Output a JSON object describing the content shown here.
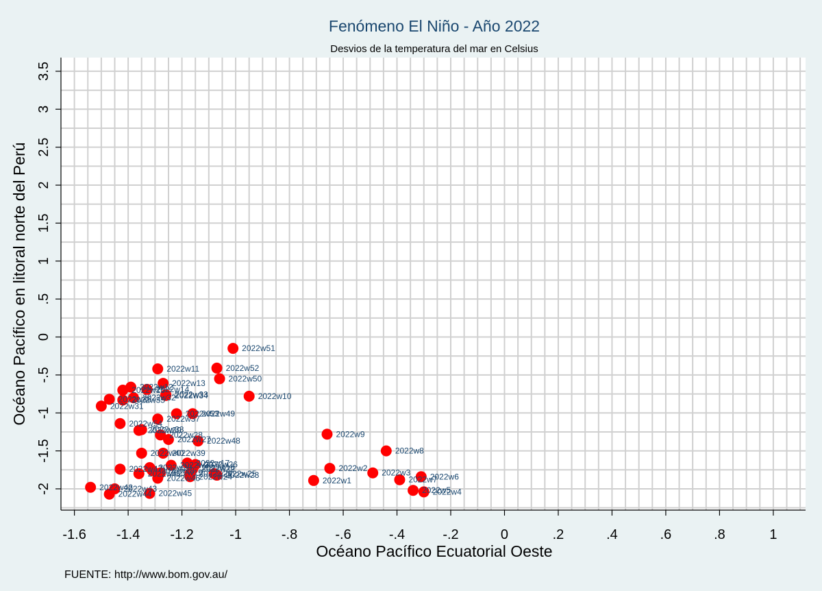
{
  "chart_data": {
    "type": "scatter",
    "title": "Fenómeno El Niño - Año 2022",
    "subtitle": "Desvios de la temperatura del mar en Celsius",
    "xlabel": "Océano Pacífico Ecuatorial Oeste",
    "ylabel": "Océano Pacífico en litoral norte del Perú",
    "source": "FUENTE: http://www.bom.gov.au/",
    "xlim": [
      -1.65,
      1.12
    ],
    "ylim": [
      -2.28,
      3.68
    ],
    "xticks": [
      -1.6,
      -1.4,
      -1.2,
      -1,
      -0.8,
      -0.6,
      -0.4,
      -0.2,
      0,
      0.2,
      0.4,
      0.6,
      0.8,
      1
    ],
    "xtick_labels": [
      "-1.6",
      "-1.4",
      "-1.2",
      "-1",
      "-.8",
      "-.6",
      "-.4",
      "-.2",
      "0",
      ".2",
      ".4",
      ".6",
      ".8",
      "1"
    ],
    "yticks": [
      -2,
      -1.5,
      -1,
      -0.5,
      0,
      0.5,
      1,
      1.5,
      2,
      2.5,
      3,
      3.5
    ],
    "ytick_labels": [
      "-2",
      "-1.5",
      "-1",
      "-.5",
      "0",
      ".5",
      "1",
      "1.5",
      "2",
      "2.5",
      "3",
      "3.5"
    ],
    "grid": true,
    "marker_color": "#ff0000",
    "label_color": "#1a476f",
    "points": [
      {
        "label": "2022w1",
        "x": -0.71,
        "y": -1.89
      },
      {
        "label": "2022w2",
        "x": -0.65,
        "y": -1.73
      },
      {
        "label": "2022w3",
        "x": -0.49,
        "y": -1.79
      },
      {
        "label": "2022w4",
        "x": -0.3,
        "y": -2.04
      },
      {
        "label": "2022w5",
        "x": -0.34,
        "y": -2.02
      },
      {
        "label": "2022w6",
        "x": -0.31,
        "y": -1.84
      },
      {
        "label": "2022w7",
        "x": -0.39,
        "y": -1.88
      },
      {
        "label": "2022w8",
        "x": -0.44,
        "y": -1.5
      },
      {
        "label": "2022w9",
        "x": -0.66,
        "y": -1.28
      },
      {
        "label": "2022w10",
        "x": -0.95,
        "y": -0.78
      },
      {
        "label": "2022w11",
        "x": -1.29,
        "y": -0.42
      },
      {
        "label": "2022w12",
        "x": -1.39,
        "y": -0.66
      },
      {
        "label": "2022w13",
        "x": -1.27,
        "y": -0.61
      },
      {
        "label": "2022w14",
        "x": -1.33,
        "y": -0.69
      },
      {
        "label": "2022w15",
        "x": -1.42,
        "y": -0.7
      },
      {
        "label": "2022w16",
        "x": -1.16,
        "y": -1.72
      },
      {
        "label": "2022w17",
        "x": -1.18,
        "y": -1.66
      },
      {
        "label": "2022w18",
        "x": -1.31,
        "y": -1.76
      },
      {
        "label": "2022w19",
        "x": -1.28,
        "y": -1.79
      },
      {
        "label": "2022w20",
        "x": -1.24,
        "y": -1.69
      },
      {
        "label": "2022w21",
        "x": -1.17,
        "y": -1.8
      },
      {
        "label": "2022w22",
        "x": -1.16,
        "y": -1.74
      },
      {
        "label": "2022w23",
        "x": -1.07,
        "y": -1.82
      },
      {
        "label": "2022w24",
        "x": -1.17,
        "y": -1.84
      },
      {
        "label": "2022w25",
        "x": -1.08,
        "y": -1.8
      },
      {
        "label": "2022w26",
        "x": -1.15,
        "y": -1.68
      },
      {
        "label": "2022w27",
        "x": -1.25,
        "y": -1.35
      },
      {
        "label": "2022w28",
        "x": -1.28,
        "y": -1.29
      },
      {
        "label": "2022w29",
        "x": -1.32,
        "y": -1.72
      },
      {
        "label": "2022w30",
        "x": -1.36,
        "y": -1.23
      },
      {
        "label": "2022w31",
        "x": -1.5,
        "y": -0.91
      },
      {
        "label": "2022w32",
        "x": -1.38,
        "y": -0.8
      },
      {
        "label": "2022w33",
        "x": -1.26,
        "y": -0.76
      },
      {
        "label": "2022w34",
        "x": -1.26,
        "y": -0.77
      },
      {
        "label": "2022w35",
        "x": -1.42,
        "y": -0.83
      },
      {
        "label": "2022w36",
        "x": -1.47,
        "y": -0.82
      },
      {
        "label": "2022w37",
        "x": -1.29,
        "y": -1.08
      },
      {
        "label": "2022w38",
        "x": -1.35,
        "y": -1.22
      },
      {
        "label": "2022w39",
        "x": -1.27,
        "y": -1.53
      },
      {
        "label": "2022w40",
        "x": -1.35,
        "y": -1.53
      },
      {
        "label": "2022w41",
        "x": -1.36,
        "y": -1.8
      },
      {
        "label": "2022w42",
        "x": -1.54,
        "y": -1.98
      },
      {
        "label": "2022w43",
        "x": -1.45,
        "y": -2.0
      },
      {
        "label": "2022w44",
        "x": -1.47,
        "y": -2.07
      },
      {
        "label": "2022w45",
        "x": -1.32,
        "y": -2.06
      },
      {
        "label": "2022w46",
        "x": -1.29,
        "y": -1.86
      },
      {
        "label": "2022w47",
        "x": -1.43,
        "y": -1.74
      },
      {
        "label": "2022w48",
        "x": -1.14,
        "y": -1.37
      },
      {
        "label": "2022w49",
        "x": -1.16,
        "y": -1.01
      },
      {
        "label": "2022w50",
        "x": -1.06,
        "y": -0.55
      },
      {
        "label": "2022w51",
        "x": -1.01,
        "y": -0.15
      },
      {
        "label": "2022w52",
        "x": -1.07,
        "y": -0.41
      },
      {
        "label": "2022w53",
        "x": -1.22,
        "y": -1.01
      },
      {
        "label": "2022w54",
        "x": -1.43,
        "y": -1.14
      }
    ]
  }
}
